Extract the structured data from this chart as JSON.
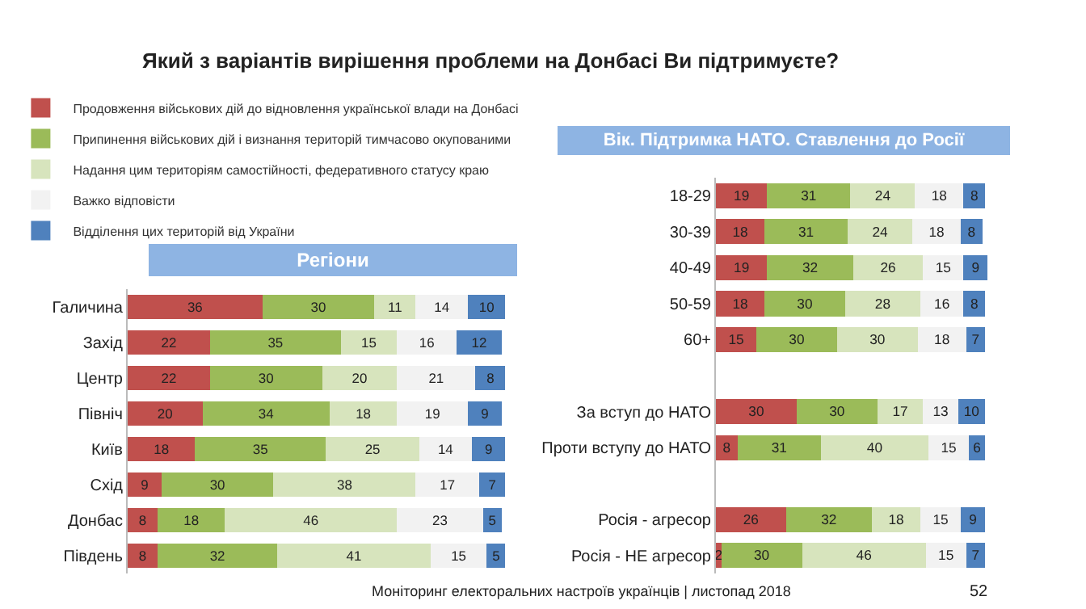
{
  "chart_data": [
    {
      "type": "bar",
      "orientation": "horizontal",
      "stacked": true,
      "title": "Який з варіантів вирішення проблеми на Донбасі Ви підтримуєте?",
      "subtitle": "Регіони",
      "categories": [
        "Галичина",
        "Захід",
        "Центр",
        "Північ",
        "Київ",
        "Схід",
        "Донбас",
        "Південь"
      ],
      "series": [
        {
          "name": "Продовження військових дій до відновлення української влади на Донбасі",
          "color": "#c0504d",
          "values": [
            36,
            22,
            22,
            20,
            18,
            9,
            8,
            8
          ]
        },
        {
          "name": "Припинення військових дій і визнання територій тимчасово окупованими",
          "color": "#9bbb59",
          "values": [
            30,
            35,
            30,
            34,
            35,
            30,
            18,
            32
          ]
        },
        {
          "name": "Надання цим територіям самостійності, федеративного статусу краю",
          "color": "#d7e4bd",
          "values": [
            11,
            15,
            20,
            18,
            25,
            38,
            46,
            41
          ]
        },
        {
          "name": "Важко відповісти",
          "color": "#f2f2f2",
          "values": [
            14,
            16,
            21,
            19,
            14,
            17,
            23,
            15
          ]
        },
        {
          "name": "Відділення цих територій від України",
          "color": "#4f81bd",
          "values": [
            10,
            12,
            8,
            9,
            9,
            7,
            5,
            5
          ]
        }
      ],
      "data_labels": true,
      "legend": "top left",
      "tick_labels": "y",
      "annotations": [
        "Моніторинг електоральних настроїв українців | листопад 2018",
        "52"
      ]
    },
    {
      "type": "bar",
      "orientation": "horizontal",
      "stacked": true,
      "title": "Вік. Підтримка НАТО. Ставлення до Росії",
      "categories": [
        "18-29",
        "30-39",
        "40-49",
        "50-59",
        "60+",
        null,
        "За вступ до НАТО",
        "Проти вступу до НАТО",
        null,
        "Росія - агресор",
        "Росія - НЕ агресор"
      ],
      "series": [
        {
          "color": "#c0504d",
          "values": [
            19,
            18,
            19,
            18,
            15,
            null,
            30,
            8,
            null,
            26,
            2
          ]
        },
        {
          "color": "#9bbb59",
          "values": [
            31,
            31,
            32,
            30,
            30,
            null,
            30,
            31,
            null,
            32,
            30
          ]
        },
        {
          "color": "#d7e4bd",
          "values": [
            24,
            24,
            26,
            28,
            30,
            null,
            17,
            40,
            null,
            18,
            46
          ]
        },
        {
          "color": "#f2f2f2",
          "values": [
            18,
            18,
            15,
            16,
            18,
            null,
            13,
            15,
            null,
            15,
            15
          ]
        },
        {
          "color": "#4f81bd",
          "values": [
            8,
            8,
            9,
            8,
            7,
            null,
            10,
            6,
            null,
            9,
            7
          ]
        }
      ],
      "data_labels": true,
      "tick_labels": "y"
    }
  ]
}
